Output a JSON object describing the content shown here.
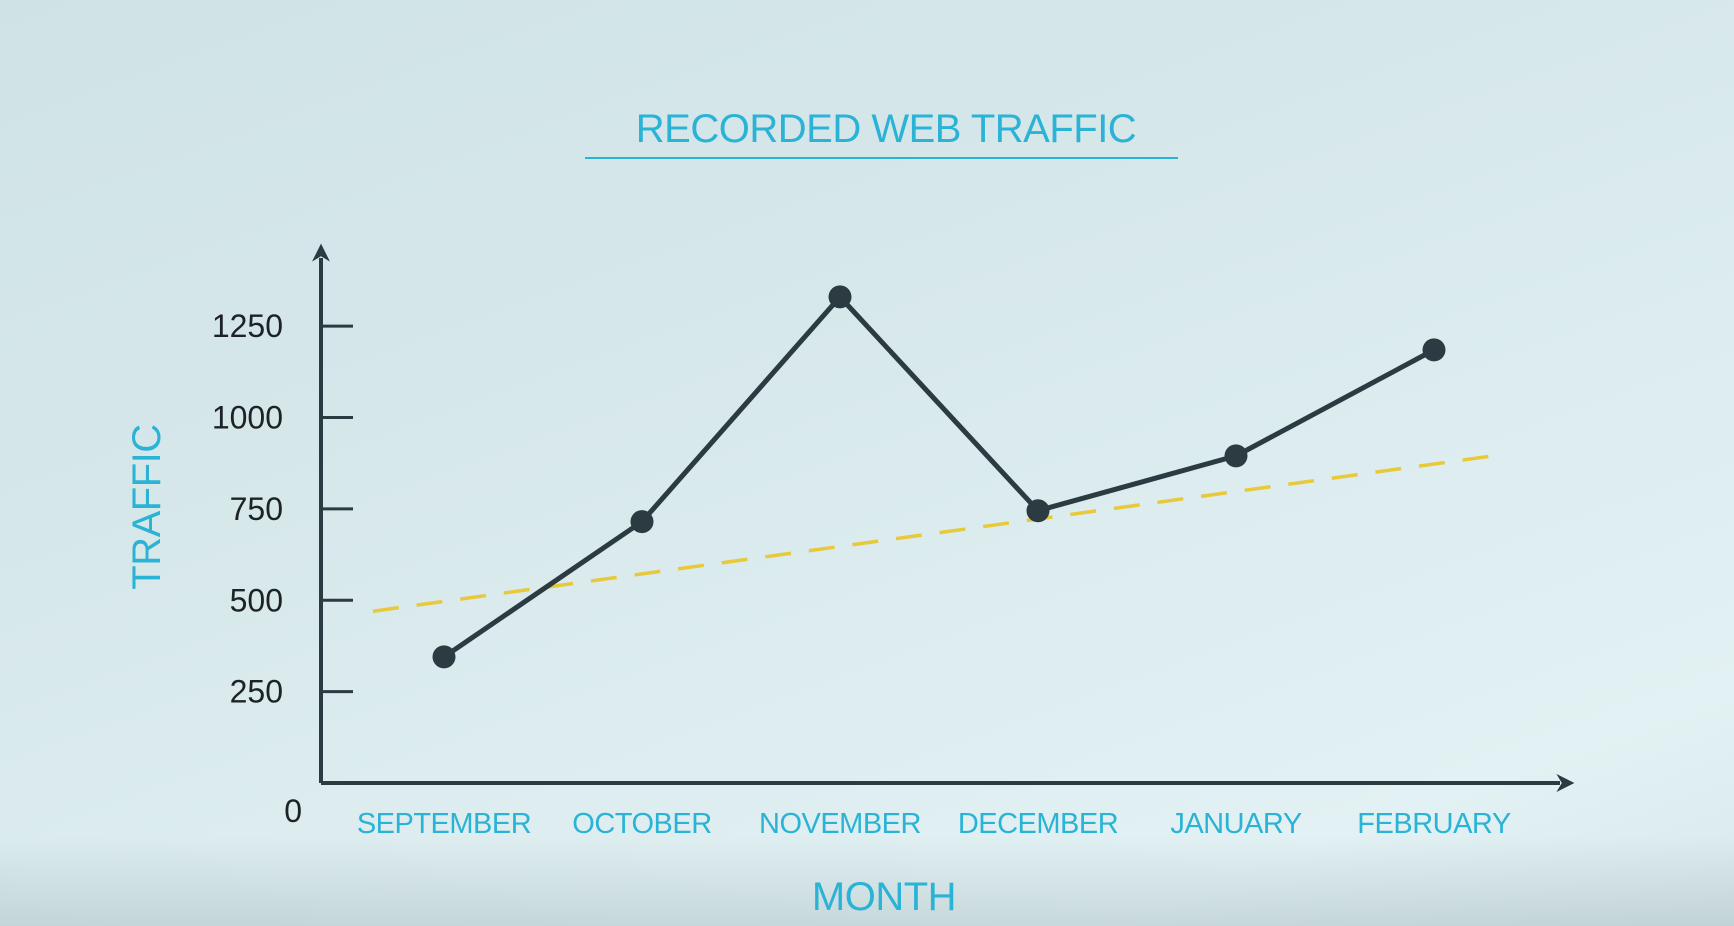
{
  "chart_data": {
    "type": "line",
    "title": "RECORDED WEB TRAFFIC",
    "xlabel": "MONTH",
    "ylabel": "TRAFFIC",
    "categories": [
      "SEPTEMBER",
      "OCTOBER",
      "NOVEMBER",
      "DECEMBER",
      "JANUARY",
      "FEBRUARY"
    ],
    "series": [
      {
        "values": [
          345,
          715,
          1330,
          745,
          895,
          1185
        ],
        "color": "#2c3a41",
        "style": "solid",
        "markers": true
      }
    ],
    "trendline": {
      "color": "#e8c93a",
      "style": "dashed",
      "start": 470,
      "end": 900
    },
    "yticks": [
      0,
      250,
      500,
      750,
      1000,
      1250
    ],
    "ylim": [
      0,
      1500
    ],
    "grid": false,
    "legend": "none",
    "colors": {
      "accent": "#2bb3d6",
      "axis": "#2c3a41",
      "tick_text": "#1c2226"
    }
  }
}
